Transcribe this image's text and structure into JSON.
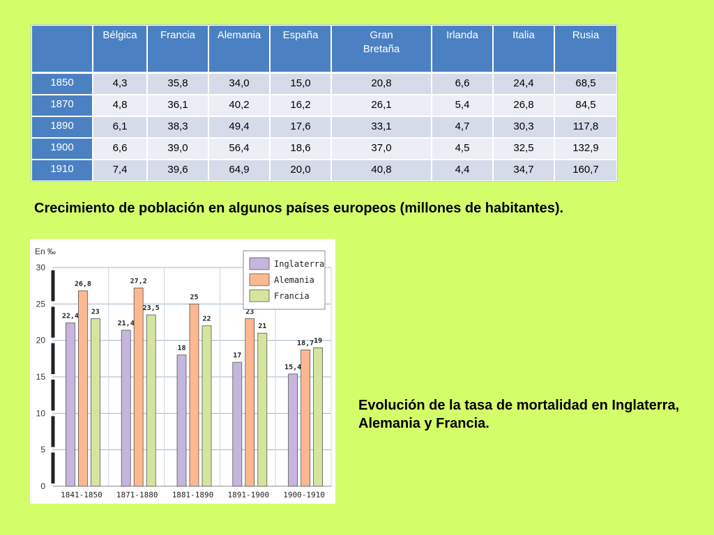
{
  "table": {
    "headers": [
      "",
      "Bélgica",
      "Francia",
      "Alemania",
      "España",
      "Gran Bretaña",
      "Irlanda",
      "Italia",
      "Rusia"
    ],
    "rows": [
      {
        "year": "1850",
        "values": [
          "4,3",
          "35,8",
          "34,0",
          "15,0",
          "20,8",
          "6,6",
          "24,4",
          "68,5"
        ]
      },
      {
        "year": "1870",
        "values": [
          "4,8",
          "36,1",
          "40,2",
          "16,2",
          "26,1",
          "5,4",
          "26,8",
          "84,5"
        ]
      },
      {
        "year": "1890",
        "values": [
          "6,1",
          "38,3",
          "49,4",
          "17,6",
          "33,1",
          "4,7",
          "30,3",
          "117,8"
        ]
      },
      {
        "year": "1900",
        "values": [
          "6,6",
          "39,0",
          "56,4",
          "18,6",
          "37,0",
          "4,5",
          "32,5",
          "132,9"
        ]
      },
      {
        "year": "1910",
        "values": [
          "7,4",
          "39,6",
          "64,9",
          "20,0",
          "40,8",
          "4,4",
          "34,7",
          "160,7"
        ]
      }
    ]
  },
  "captions": {
    "table": "Crecimiento de población en algunos países europeos (millones de habitantes).",
    "chart": "Evolución de la tasa de mortalidad en Inglaterra, Alemania y Francia."
  },
  "chart_data": {
    "type": "bar",
    "ylabel": "En ‰",
    "ylim": [
      0,
      30
    ],
    "yticks": [
      "0",
      "5",
      "10",
      "15",
      "20",
      "25",
      "30"
    ],
    "grid": true,
    "legend_position": "top-right",
    "categories": [
      "1841-1850",
      "1871-1880",
      "1881-1890",
      "1891-1900",
      "1900-1910"
    ],
    "series": [
      {
        "name": "Inglaterra",
        "color": "#c6b5dc",
        "values": [
          22.4,
          21.4,
          18,
          17,
          15.4
        ],
        "labels": [
          "22,4",
          "21,4",
          "18",
          "17",
          "15,4"
        ]
      },
      {
        "name": "Alemania",
        "color": "#fcb891",
        "values": [
          26.8,
          27.2,
          25,
          23,
          18.7
        ],
        "labels": [
          "26,8",
          "27,2",
          "25",
          "23",
          "18,7"
        ]
      },
      {
        "name": "Francia",
        "color": "#d4e59e",
        "values": [
          23,
          23.5,
          22,
          21,
          19
        ],
        "labels": [
          "23",
          "23,5",
          "22",
          "21",
          "19"
        ]
      }
    ]
  }
}
